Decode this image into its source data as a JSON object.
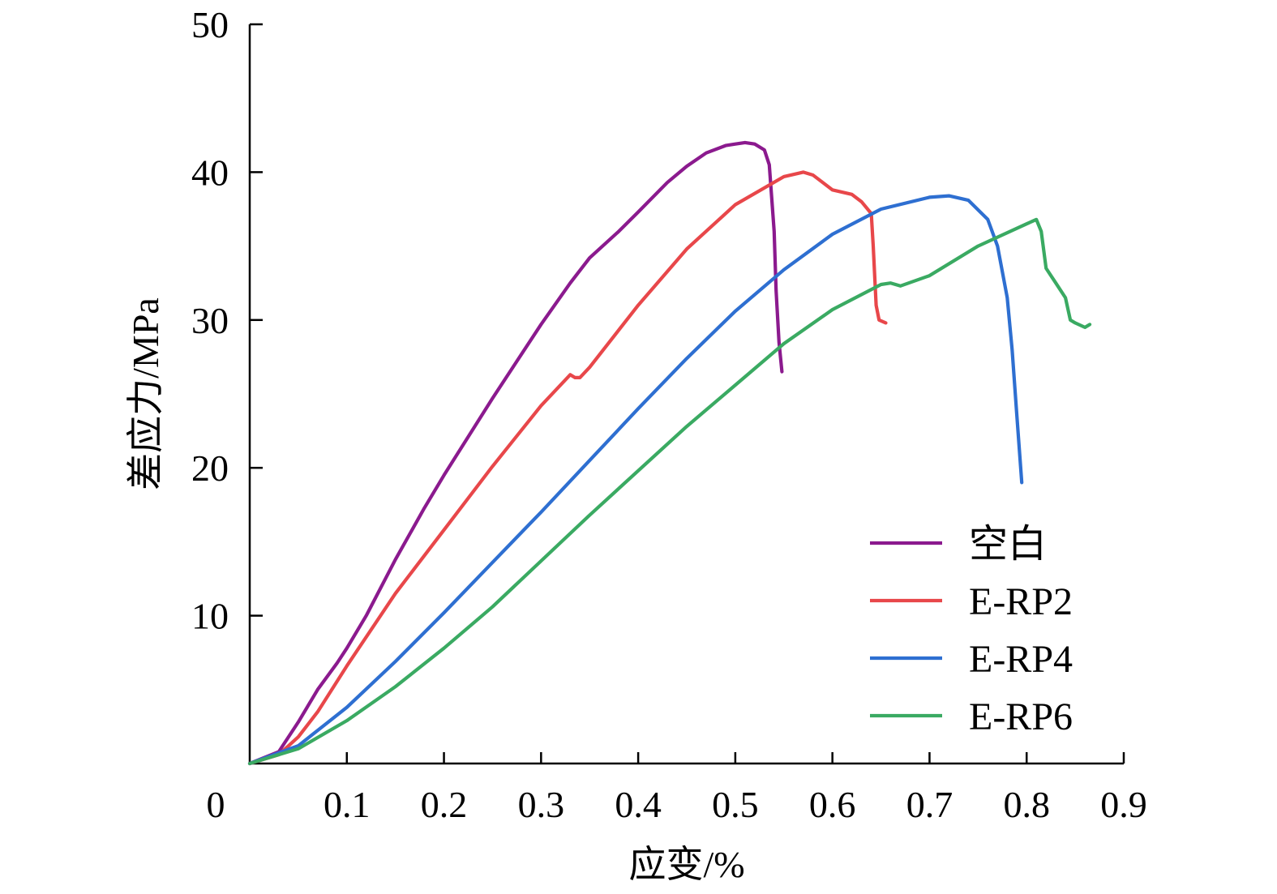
{
  "chart_data": {
    "type": "line",
    "title": "",
    "xlabel": "应变/%",
    "ylabel": "差应力/MPa",
    "xlim": [
      0,
      0.9
    ],
    "ylim": [
      0,
      50
    ],
    "xticks": [
      0,
      0.1,
      0.2,
      0.3,
      0.4,
      0.5,
      0.6,
      0.7,
      0.8,
      0.9
    ],
    "yticks": [
      10,
      20,
      30,
      40,
      50
    ],
    "xtick_labels": [
      "0",
      "0.1",
      "0.2",
      "0.3",
      "0.4",
      "0.5",
      "0.6",
      "0.7",
      "0.8",
      "0.9"
    ],
    "ytick_labels": [
      "10",
      "20",
      "30",
      "40",
      "50"
    ],
    "grid": false,
    "legend_position": "bottom-right",
    "series": [
      {
        "name": "空白",
        "color": "#8b1a8e",
        "x": [
          0.0,
          0.03,
          0.05,
          0.07,
          0.09,
          0.1,
          0.12,
          0.15,
          0.18,
          0.2,
          0.25,
          0.3,
          0.33,
          0.35,
          0.38,
          0.4,
          0.43,
          0.45,
          0.47,
          0.49,
          0.5,
          0.51,
          0.52,
          0.53,
          0.535,
          0.54,
          0.542,
          0.545,
          0.548
        ],
        "y": [
          0.0,
          0.8,
          2.8,
          5.0,
          6.8,
          7.8,
          10.0,
          13.8,
          17.3,
          19.5,
          24.7,
          29.7,
          32.5,
          34.2,
          36.0,
          37.3,
          39.3,
          40.4,
          41.3,
          41.8,
          41.9,
          42.0,
          41.9,
          41.5,
          40.5,
          36.0,
          32.0,
          28.5,
          26.5
        ]
      },
      {
        "name": "E-RP2",
        "color": "#e8474a",
        "x": [
          0.0,
          0.03,
          0.05,
          0.07,
          0.1,
          0.15,
          0.2,
          0.25,
          0.3,
          0.33,
          0.335,
          0.34,
          0.35,
          0.4,
          0.45,
          0.5,
          0.55,
          0.57,
          0.58,
          0.6,
          0.62,
          0.63,
          0.64,
          0.642,
          0.645,
          0.648,
          0.655
        ],
        "y": [
          0.0,
          0.6,
          1.8,
          3.5,
          6.6,
          11.5,
          15.8,
          20.1,
          24.2,
          26.3,
          26.1,
          26.1,
          26.8,
          31.0,
          34.8,
          37.8,
          39.7,
          40.0,
          39.8,
          38.8,
          38.5,
          38.0,
          37.2,
          35.0,
          31.0,
          30.0,
          29.8
        ]
      },
      {
        "name": "E-RP4",
        "color": "#2e6fd1",
        "x": [
          0.0,
          0.05,
          0.1,
          0.15,
          0.2,
          0.25,
          0.3,
          0.35,
          0.4,
          0.45,
          0.5,
          0.55,
          0.6,
          0.65,
          0.7,
          0.72,
          0.74,
          0.76,
          0.77,
          0.78,
          0.785,
          0.79,
          0.795
        ],
        "y": [
          0.0,
          1.2,
          3.8,
          6.9,
          10.2,
          13.6,
          17.0,
          20.5,
          24.0,
          27.4,
          30.6,
          33.4,
          35.8,
          37.5,
          38.3,
          38.4,
          38.1,
          36.8,
          35.0,
          31.5,
          28.0,
          23.5,
          19.0
        ]
      },
      {
        "name": "E-RP6",
        "color": "#3aaa62",
        "x": [
          0.0,
          0.05,
          0.1,
          0.15,
          0.2,
          0.25,
          0.3,
          0.35,
          0.4,
          0.45,
          0.5,
          0.55,
          0.6,
          0.65,
          0.66,
          0.67,
          0.7,
          0.75,
          0.8,
          0.81,
          0.815,
          0.82,
          0.83,
          0.84,
          0.845,
          0.85,
          0.86,
          0.865
        ],
        "y": [
          0.0,
          1.0,
          2.9,
          5.2,
          7.8,
          10.6,
          13.7,
          16.8,
          19.8,
          22.8,
          25.6,
          28.4,
          30.7,
          32.4,
          32.5,
          32.3,
          33.0,
          35.0,
          36.5,
          36.8,
          36.0,
          33.5,
          32.5,
          31.5,
          30.0,
          29.8,
          29.5,
          29.7
        ]
      }
    ]
  }
}
